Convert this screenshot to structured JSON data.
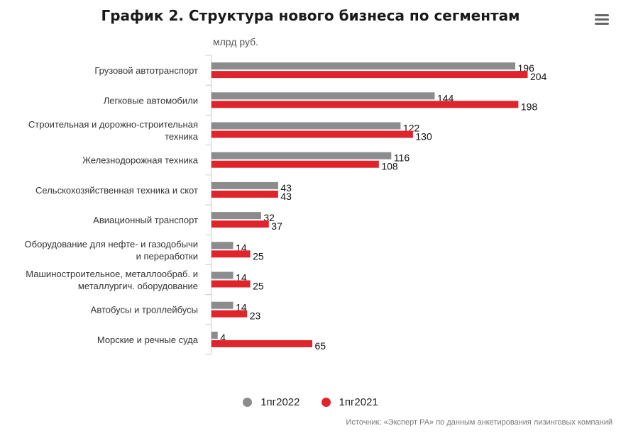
{
  "header": {
    "title": "График 2. Структура нового бизнеса по сегментам",
    "menu_icon": "hamburger-menu-icon"
  },
  "unit_label": "млрд руб.",
  "source": "Источник: «Эксперт РА» по данным анкетирования лизинговых компаний",
  "colors": {
    "series_2022": "#8b8c8e",
    "series_2021": "#e0242b",
    "axis": "#cccccc"
  },
  "legend": [
    {
      "name": "1пг2022",
      "color": "#8b8c8e"
    },
    {
      "name": "1пг2021",
      "color": "#e0242b"
    }
  ],
  "chart_data": {
    "type": "bar",
    "orientation": "horizontal",
    "categories": [
      [
        "Грузовой автотранспорт"
      ],
      [
        "Легковые автомобили"
      ],
      [
        "Строительная и дорожно-строительная",
        "техника"
      ],
      [
        "Железнодорожная техника"
      ],
      [
        "Сельскохозяйственная техника и скот"
      ],
      [
        "Авиационный транспорт"
      ],
      [
        "Оборудование для нефте- и газодобычи",
        "и переработки"
      ],
      [
        "Машиностроительное, металлообраб. и",
        "металлургич. оборудование"
      ],
      [
        "Автобусы и троллейбусы"
      ],
      [
        "Морские и речные суда"
      ]
    ],
    "series": [
      {
        "name": "1пг2022",
        "values": [
          196,
          144,
          122,
          116,
          43,
          32,
          14,
          14,
          14,
          4
        ]
      },
      {
        "name": "1пг2021",
        "values": [
          204,
          198,
          130,
          108,
          43,
          37,
          25,
          25,
          23,
          65
        ]
      }
    ],
    "xlim": [
      0,
      210
    ],
    "ylabel": "млрд руб.",
    "grid": false,
    "data_labels": true,
    "legend_position": "bottom"
  }
}
